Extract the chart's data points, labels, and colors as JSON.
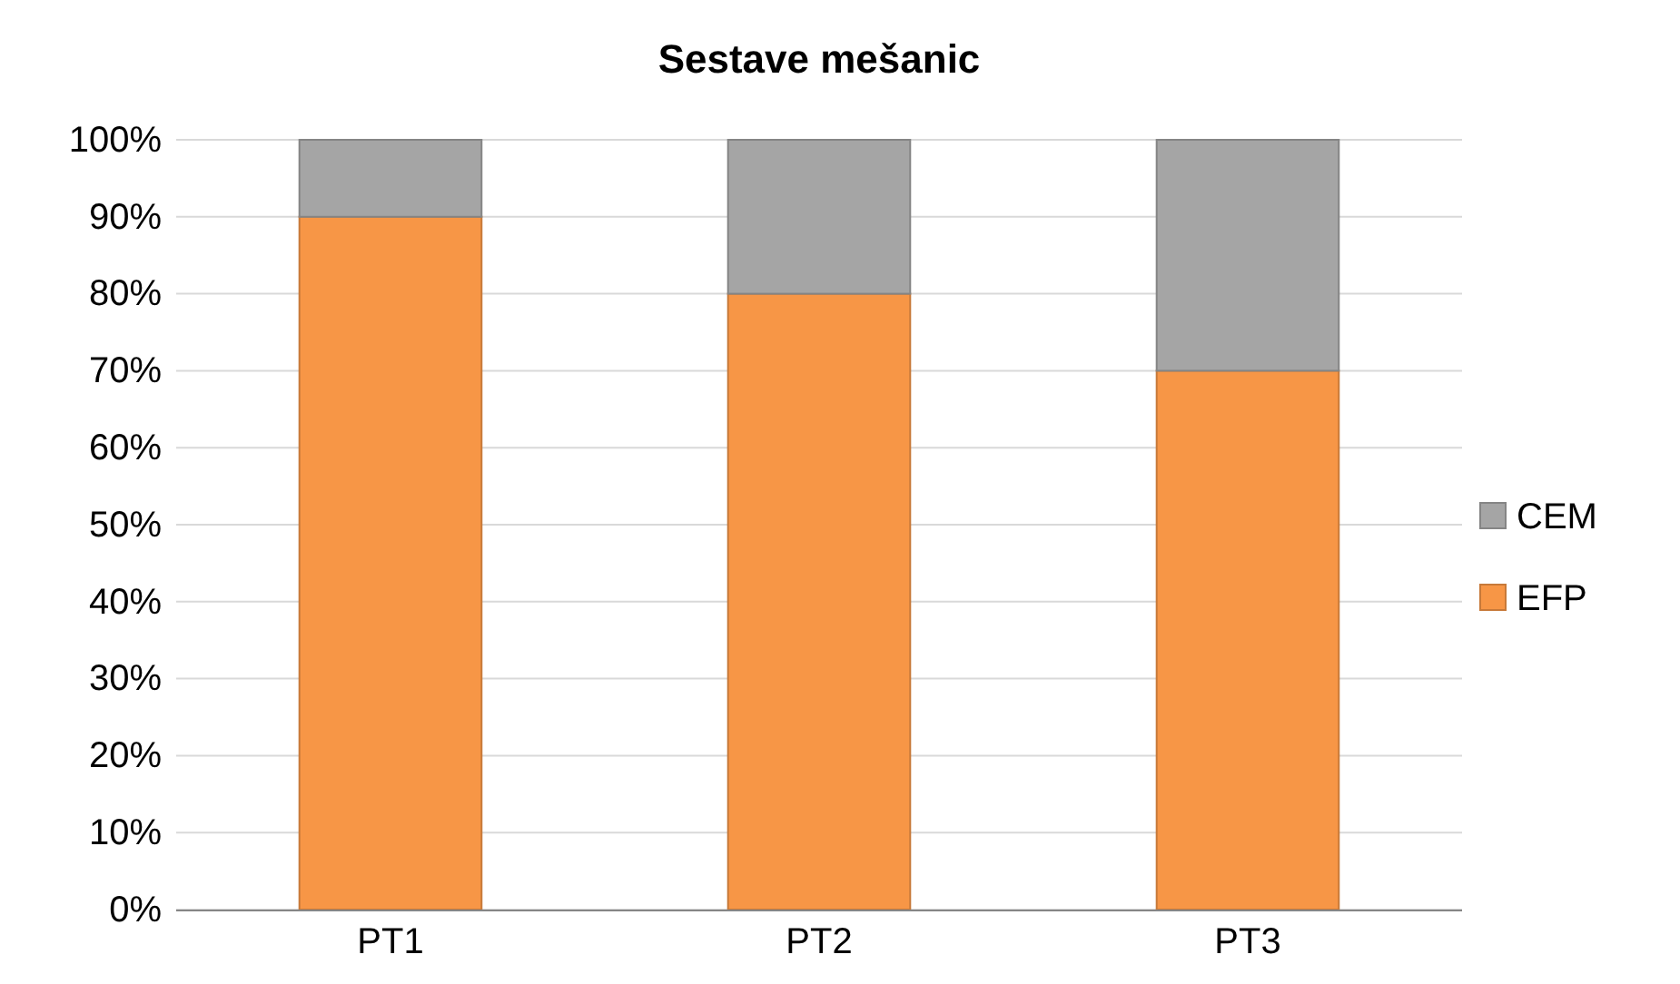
{
  "chart_data": {
    "type": "bar",
    "title": "Sestave mešanic",
    "categories": [
      "PT1",
      "PT2",
      "PT3"
    ],
    "stacked": true,
    "series": [
      {
        "name": "EFP",
        "color": "#f79646",
        "values": [
          90,
          80,
          70
        ]
      },
      {
        "name": "CEM",
        "color": "#a5a5a5",
        "values": [
          10,
          20,
          30
        ]
      }
    ],
    "ylim": [
      0,
      100
    ],
    "yticks": [
      {
        "value": 0,
        "label": "0%"
      },
      {
        "value": 10,
        "label": "10%"
      },
      {
        "value": 20,
        "label": "20%"
      },
      {
        "value": 30,
        "label": "30%"
      },
      {
        "value": 40,
        "label": "40%"
      },
      {
        "value": 50,
        "label": "50%"
      },
      {
        "value": 60,
        "label": "60%"
      },
      {
        "value": 70,
        "label": "70%"
      },
      {
        "value": 80,
        "label": "80%"
      },
      {
        "value": 90,
        "label": "90%"
      },
      {
        "value": 100,
        "label": "100%"
      }
    ],
    "grid": "y",
    "legend": "right"
  }
}
